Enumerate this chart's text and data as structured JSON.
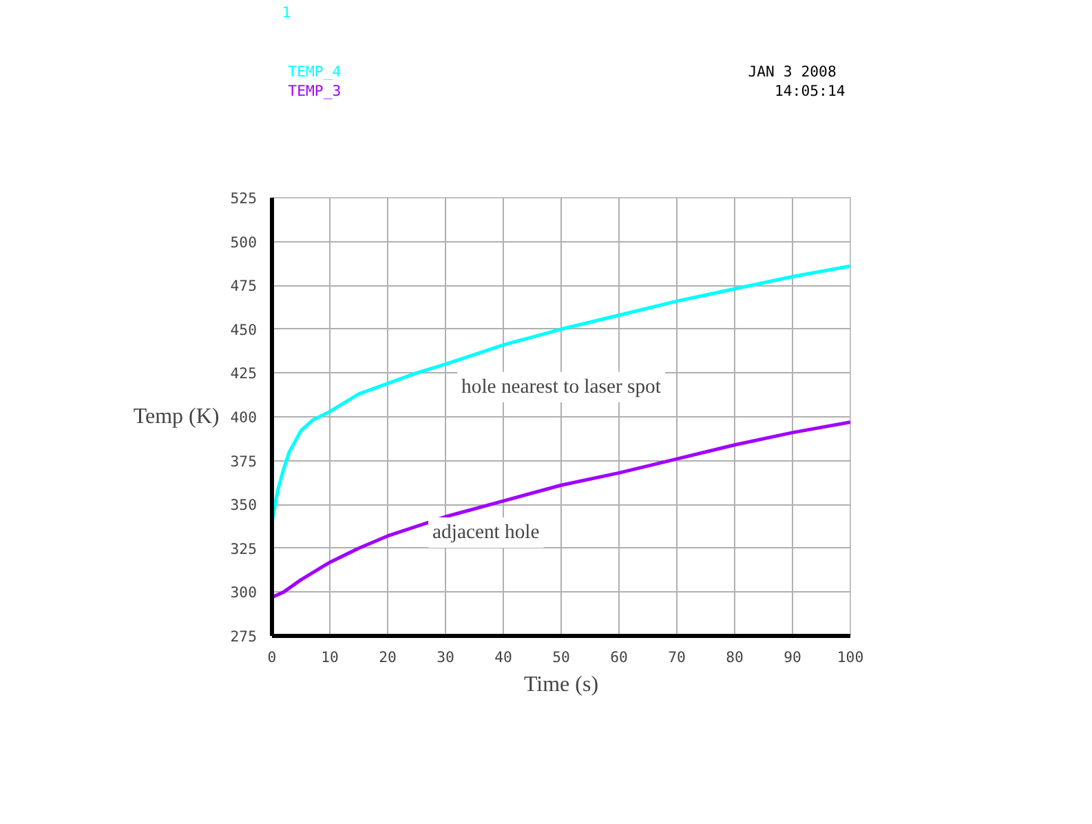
{
  "chart_data": {
    "type": "line",
    "xlabel": "Time (s)",
    "ylabel": "Temp (K)",
    "xlim": [
      0,
      100
    ],
    "ylim": [
      275,
      525
    ],
    "xticks": [
      0,
      10,
      20,
      30,
      40,
      50,
      60,
      70,
      80,
      90,
      100
    ],
    "yticks": [
      275,
      300,
      325,
      350,
      375,
      400,
      425,
      450,
      475,
      500,
      525
    ],
    "grid": true,
    "legend": "top left",
    "marker": "none",
    "line_style": "solid",
    "series": [
      {
        "name": "TEMP_4",
        "color": "#00ffff",
        "x": [
          0,
          1,
          2,
          3,
          5,
          7,
          10,
          15,
          20,
          25,
          30,
          40,
          50,
          60,
          70,
          80,
          90,
          100
        ],
        "values": [
          340,
          358,
          370,
          380,
          392,
          398,
          403,
          413,
          419,
          425,
          430,
          441,
          450,
          458,
          466,
          473,
          480,
          486
        ]
      },
      {
        "name": "TEMP_3",
        "color": "#a000ff",
        "x": [
          0,
          2,
          5,
          10,
          15,
          20,
          30,
          40,
          50,
          60,
          70,
          80,
          90,
          100
        ],
        "values": [
          297,
          300,
          307,
          317,
          325,
          332,
          343,
          352,
          361,
          368,
          376,
          384,
          391,
          397
        ]
      }
    ],
    "annotations": [
      "hole nearest to laser spot",
      "adjacent hole",
      "1",
      "JAN  3 2008",
      "14:05:14"
    ]
  }
}
